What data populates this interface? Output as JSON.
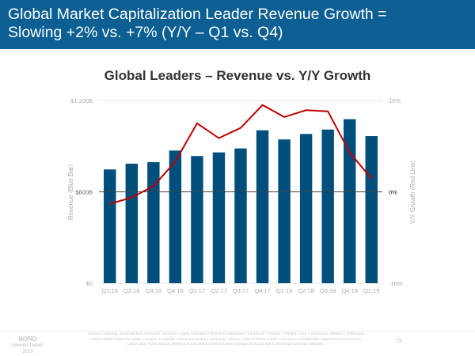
{
  "header": {
    "title_line1": "Global Market Capitalization Leader Revenue Growth =",
    "title_line2": "Slowing +2% vs. +7% (Y/Y – Q1 vs. Q4)"
  },
  "chart_data": {
    "type": "bar+line",
    "title": "Global Leaders – Revenue vs. Y/Y Growth",
    "ylabel": "Revenue (Blue Bar)",
    "y2label": "Y/Y Growth (Red Line)",
    "categories": [
      "Q1:16",
      "Q2:16",
      "Q3:16",
      "Q4:16",
      "Q1:17",
      "Q2:17",
      "Q3:17",
      "Q4:17",
      "Q1:18",
      "Q2:18",
      "Q3:18",
      "Q4:18",
      "Q1:19"
    ],
    "ylim": [
      0,
      1200
    ],
    "yticks": [
      "$0",
      "$600B",
      "$1,200B"
    ],
    "y2lim": [
      -16,
      16
    ],
    "y2ticks": [
      "-16%",
      "0%",
      "16%"
    ],
    "series": [
      {
        "name": "Revenue (Blue Bar)",
        "type": "bar",
        "color": "#004e7c",
        "values": [
          747,
          785,
          795,
          871,
          835,
          859,
          885,
          1004,
          944,
          980,
          1009,
          1077,
          966
        ]
      },
      {
        "name": "Y/Y Growth (Red Line)",
        "type": "line",
        "axis": "right",
        "color": "#c00000",
        "values": [
          -2.1,
          -1,
          1,
          5.3,
          12,
          9.4,
          11.2,
          15.2,
          13.1,
          14.3,
          14.1,
          6.9,
          2.3
        ]
      }
    ]
  },
  "footer": {
    "logo": "BOND",
    "logo_sub": "Internet Trends",
    "logo_year": "2019",
    "source": "Source: CapitalIQ. Revenue from Microsoft / Amazon / Apple / Alphabet / Berkshire Hathaway / Facebook / Tencent / Alibaba / Visa / Johnson & Johnson / JPMorgan / Exxon Mobil / Walmart / ICBC / Procter & Gamble / Bank of America / Samsung / Disney / Cisco / Pfizer / AT&T / Verizon / UnitedHealth / MasterCard / Chevron / Coca-Cola / Home Depot. Nestle & Royal Dutch Shell quarterly revenue excluded due to bi-annual earnings releases.",
    "page": "15"
  }
}
